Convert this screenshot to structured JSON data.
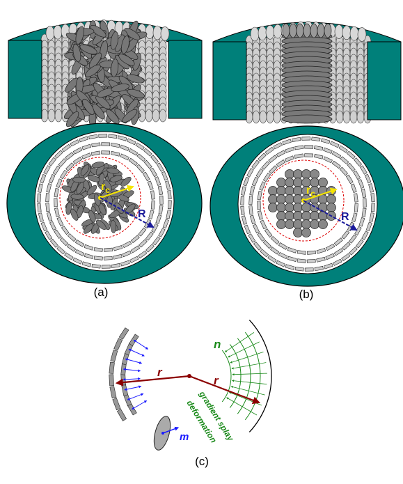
{
  "panel_a": {
    "label": "(a)",
    "rc_symbol": "r",
    "rc_subscript": "c",
    "R_symbol": "R"
  },
  "panel_b": {
    "label": "(b)",
    "rc_symbol": "r",
    "rc_subscript": "c",
    "R_symbol": "R"
  },
  "panel_c": {
    "label": "(c)",
    "n_symbol": "n",
    "r_left": "r",
    "r_right": "r",
    "m_symbol": "m",
    "caption_line1": "gradient splay",
    "caption_line2": "deformation"
  }
}
